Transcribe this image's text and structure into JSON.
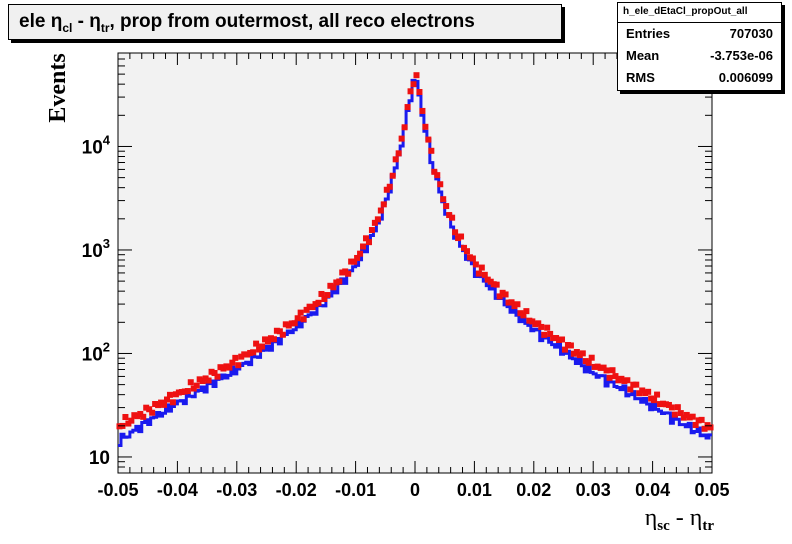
{
  "chart_data": {
    "type": "line",
    "title": {
      "main": "ele ",
      "sym1": "η",
      "sub1": "cl",
      "mid": " - ",
      "sym2": "η",
      "sub2": "tr",
      "tail": ", prop from outermost, all reco electrons"
    },
    "ylabel": "Events",
    "xlabel": {
      "sym1": "η",
      "sub1": "sc",
      "mid": " - ",
      "sym2": "η",
      "sub2": "tr"
    },
    "xlim": [
      -0.05,
      0.05
    ],
    "ylim": [
      7,
      80000
    ],
    "yscale": "log",
    "grid": false,
    "x_ticks": [
      "-0.05",
      "-0.04",
      "-0.03",
      "-0.02",
      "-0.01",
      "0",
      "0.01",
      "0.02",
      "0.03",
      "0.04",
      "0.05"
    ],
    "y_ticks": [
      {
        "base": "10",
        "exp": ""
      },
      {
        "base": "10",
        "exp": "2"
      },
      {
        "base": "10",
        "exp": "3"
      },
      {
        "base": "10",
        "exp": "4"
      }
    ],
    "series": [
      {
        "color": "#1a1aee",
        "style": "step",
        "points": [
          [
            -0.05,
            14
          ],
          [
            -0.045,
            22
          ],
          [
            -0.04,
            33
          ],
          [
            -0.035,
            48
          ],
          [
            -0.03,
            70
          ],
          [
            -0.025,
            110
          ],
          [
            -0.02,
            180
          ],
          [
            -0.015,
            320
          ],
          [
            -0.01,
            700
          ],
          [
            -0.007,
            1400
          ],
          [
            -0.005,
            2800
          ],
          [
            -0.003,
            7000
          ],
          [
            -0.0015,
            17000
          ],
          [
            -0.0005,
            38000
          ],
          [
            0,
            46000
          ],
          [
            0.0005,
            38000
          ],
          [
            0.0015,
            17000
          ],
          [
            0.003,
            6500
          ],
          [
            0.005,
            2600
          ],
          [
            0.007,
            1300
          ],
          [
            0.01,
            650
          ],
          [
            0.015,
            310
          ],
          [
            0.02,
            170
          ],
          [
            0.025,
            105
          ],
          [
            0.03,
            65
          ],
          [
            0.035,
            45
          ],
          [
            0.04,
            31
          ],
          [
            0.045,
            21
          ],
          [
            0.05,
            15
          ]
        ]
      },
      {
        "color": "#ee1111",
        "style": "markers",
        "points": [
          [
            -0.05,
            20
          ],
          [
            -0.045,
            28
          ],
          [
            -0.04,
            40
          ],
          [
            -0.035,
            58
          ],
          [
            -0.03,
            85
          ],
          [
            -0.025,
            130
          ],
          [
            -0.02,
            210
          ],
          [
            -0.015,
            370
          ],
          [
            -0.01,
            800
          ],
          [
            -0.007,
            1600
          ],
          [
            -0.005,
            3100
          ],
          [
            -0.003,
            7700
          ],
          [
            -0.0015,
            18500
          ],
          [
            -0.0005,
            41000
          ],
          [
            0,
            49000
          ],
          [
            0.0005,
            41000
          ],
          [
            0.0015,
            18500
          ],
          [
            0.003,
            7200
          ],
          [
            0.005,
            2900
          ],
          [
            0.007,
            1450
          ],
          [
            0.01,
            740
          ],
          [
            0.015,
            360
          ],
          [
            0.02,
            200
          ],
          [
            0.025,
            125
          ],
          [
            0.03,
            80
          ],
          [
            0.035,
            55
          ],
          [
            0.04,
            38
          ],
          [
            0.045,
            26
          ],
          [
            0.05,
            19
          ]
        ]
      }
    ]
  },
  "stats": {
    "name": "h_ele_dEtaCl_propOut_all",
    "rows": [
      {
        "label": "Entries",
        "value": "707030"
      },
      {
        "label": "Mean",
        "value": "-3.753e-06"
      },
      {
        "label": "RMS",
        "value": "0.006099"
      }
    ]
  }
}
